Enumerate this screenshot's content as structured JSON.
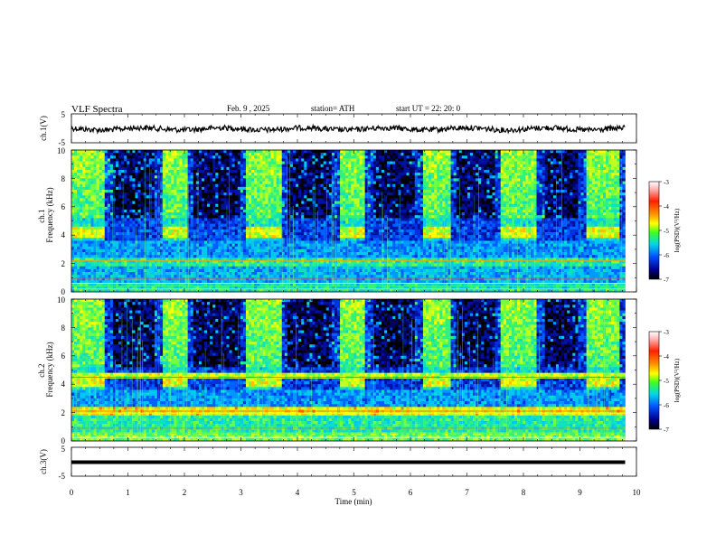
{
  "header": {
    "title": "VLF  Spectra",
    "date": "Feb. 9  , 2025",
    "station": "station= ATH",
    "start": "start  UT  =    22: 20: 0"
  },
  "chart_data": [
    {
      "type": "line",
      "panel": "ch1-waveform",
      "ylabel": "ch.1(V)",
      "yticks": [
        "5",
        "-5"
      ],
      "ylim": [
        -5,
        5
      ],
      "xlim": [
        0,
        10
      ],
      "color": "#000000"
    },
    {
      "type": "heatmap",
      "panel": "ch1-spectrogram",
      "ylabel": "ch.1\nFrequency  (kHz)",
      "yticks": [
        "0",
        "2",
        "4",
        "6",
        "8",
        "10"
      ],
      "ylim": [
        0,
        10
      ],
      "xlim": [
        0,
        10
      ],
      "colorbar": {
        "label": "log(PSD)(V²/Hz)",
        "ticks": [
          "-3",
          "-4",
          "-5",
          "-6",
          "-7"
        ],
        "range": [
          -7,
          -3
        ]
      },
      "bursts_min": [
        [
          0.6,
          1.6
        ],
        [
          2.05,
          3.1
        ],
        [
          3.7,
          4.75
        ],
        [
          5.2,
          6.2
        ],
        [
          6.7,
          7.6
        ],
        [
          8.25,
          9.1
        ],
        [
          9.7,
          9.8
        ]
      ]
    },
    {
      "type": "heatmap",
      "panel": "ch2-spectrogram",
      "ylabel": "ch.2\nFrequency  (kHz)",
      "yticks": [
        "0",
        "2",
        "4",
        "6",
        "8",
        "10"
      ],
      "ylim": [
        0,
        10
      ],
      "xlim": [
        0,
        10
      ],
      "colorbar": {
        "label": "log(PSD)(V²/Hz)",
        "ticks": [
          "-3",
          "-4",
          "-5",
          "-6",
          "-7"
        ],
        "range": [
          -7,
          -3
        ]
      },
      "bursts_min": [
        [
          0.6,
          1.6
        ],
        [
          2.05,
          3.1
        ],
        [
          3.7,
          4.75
        ],
        [
          5.2,
          6.2
        ],
        [
          6.7,
          7.6
        ],
        [
          8.25,
          9.1
        ],
        [
          9.7,
          9.8
        ]
      ]
    },
    {
      "type": "line",
      "panel": "ch3-waveform",
      "ylabel": "ch.3(V)",
      "yticks": [
        "5",
        "-5"
      ],
      "ylim": [
        -5,
        5
      ],
      "xlim": [
        0,
        10
      ],
      "color": "#000000"
    }
  ],
  "xaxis": {
    "label": "Time  (min)",
    "ticks": [
      "0",
      "1",
      "2",
      "3",
      "4",
      "5",
      "6",
      "7",
      "8",
      "9",
      "10"
    ],
    "xlim": [
      0,
      10
    ],
    "data_end": 9.8
  }
}
